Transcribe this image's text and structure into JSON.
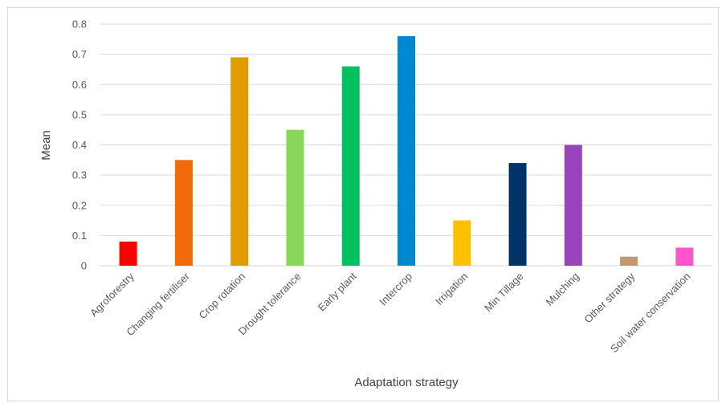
{
  "chart_data": {
    "type": "bar",
    "title": "",
    "xlabel": "Adaptation strategy",
    "ylabel": "Mean",
    "ylim": [
      0,
      0.8
    ],
    "yticks": [
      "0",
      "0.1",
      "0.2",
      "0.3",
      "0.4",
      "0.5",
      "0.6",
      "0.7",
      "0.8"
    ],
    "grid": true,
    "legend": "none",
    "categories": [
      "Agroforestry",
      "Changing fertiliser",
      "Crop rotation",
      "Drought tolerance",
      "Early plant",
      "Intercrop",
      "Irrigation",
      "Min Tillage",
      "Mulching",
      "Other strategy",
      "Soil water conservation"
    ],
    "values": [
      0.08,
      0.35,
      0.69,
      0.45,
      0.66,
      0.76,
      0.15,
      0.34,
      0.4,
      0.03,
      0.06
    ],
    "colors": [
      "#ff0000",
      "#f26a0a",
      "#e09c00",
      "#88d65a",
      "#00c060",
      "#0088d1",
      "#ffc000",
      "#003366",
      "#9944bb",
      "#c49670",
      "#ff55cc"
    ]
  }
}
